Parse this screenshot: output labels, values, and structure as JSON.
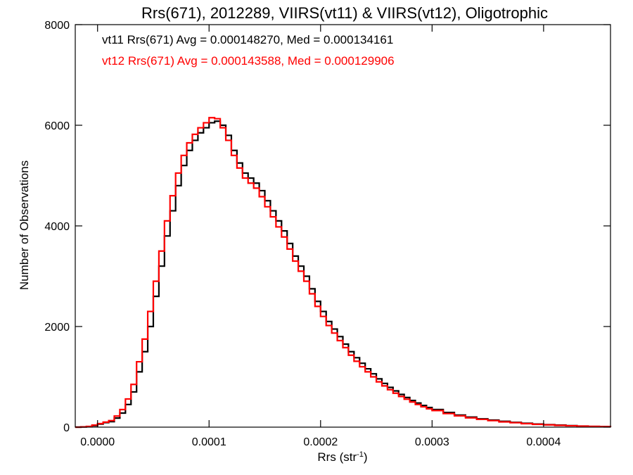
{
  "chart_data": {
    "type": "step-histogram",
    "title": "Rrs(671), 2012289, VIIRS(vt11) & VIIRS(vt12), Oligotrophic",
    "xlabel": "Rrs (str",
    "xlabel_sup": "-1",
    "xlabel_close": ")",
    "ylabel": "Number of Observations",
    "xlim": [
      -2e-05,
      0.00046
    ],
    "ylim": [
      0,
      8000
    ],
    "x_ticks": [
      0.0,
      0.0001,
      0.0002,
      0.0003,
      0.0004
    ],
    "x_tick_labels": [
      "0.0000",
      "0.0001",
      "0.0002",
      "0.0003",
      "0.0004"
    ],
    "y_ticks": [
      0,
      2000,
      4000,
      6000,
      8000
    ],
    "y_tick_labels": [
      "0",
      "2000",
      "4000",
      "6000",
      "8000"
    ],
    "annotations": [
      {
        "text": "vt11 Rrs(671) Avg = 0.000148270, Med = 0.000134161",
        "color": "#000000"
      },
      {
        "text": "vt12 Rrs(671) Avg = 0.000143588, Med = 0.000129906",
        "color": "#ff0000"
      }
    ],
    "series": [
      {
        "color": "#000000",
        "points": [
          [
            -2e-05,
            0
          ],
          [
            -1.5e-05,
            5
          ],
          [
            -1e-05,
            10
          ],
          [
            -5e-06,
            30
          ],
          [
            0.0,
            60
          ],
          [
            5e-06,
            90
          ],
          [
            1e-05,
            110
          ],
          [
            1.5e-05,
            180
          ],
          [
            2e-05,
            280
          ],
          [
            2.5e-05,
            450
          ],
          [
            3e-05,
            700
          ],
          [
            3.5e-05,
            1100
          ],
          [
            4e-05,
            1500
          ],
          [
            4.5e-05,
            2000
          ],
          [
            5e-05,
            2600
          ],
          [
            5.5e-05,
            3200
          ],
          [
            6e-05,
            3800
          ],
          [
            6.5e-05,
            4300
          ],
          [
            7e-05,
            4800
          ],
          [
            7.5e-05,
            5200
          ],
          [
            8e-05,
            5500
          ],
          [
            8.5e-05,
            5700
          ],
          [
            9e-05,
            5850
          ],
          [
            9.5e-05,
            5950
          ],
          [
            0.0001,
            6050
          ],
          [
            0.000105,
            6080
          ],
          [
            0.00011,
            6000
          ],
          [
            0.000115,
            5800
          ],
          [
            0.00012,
            5500
          ],
          [
            0.000125,
            5250
          ],
          [
            0.00013,
            5050
          ],
          [
            0.000135,
            4950
          ],
          [
            0.00014,
            4850
          ],
          [
            0.000145,
            4700
          ],
          [
            0.00015,
            4500
          ],
          [
            0.000155,
            4300
          ],
          [
            0.00016,
            4100
          ],
          [
            0.000165,
            3900
          ],
          [
            0.00017,
            3650
          ],
          [
            0.000175,
            3400
          ],
          [
            0.00018,
            3200
          ],
          [
            0.000185,
            3000
          ],
          [
            0.00019,
            2750
          ],
          [
            0.000195,
            2500
          ],
          [
            0.0002,
            2300
          ],
          [
            0.000205,
            2100
          ],
          [
            0.00021,
            1950
          ],
          [
            0.000215,
            1800
          ],
          [
            0.00022,
            1650
          ],
          [
            0.000225,
            1500
          ],
          [
            0.00023,
            1380
          ],
          [
            0.000235,
            1270
          ],
          [
            0.00024,
            1160
          ],
          [
            0.000245,
            1060
          ],
          [
            0.00025,
            960
          ],
          [
            0.000255,
            870
          ],
          [
            0.00026,
            790
          ],
          [
            0.000265,
            720
          ],
          [
            0.00027,
            650
          ],
          [
            0.000275,
            590
          ],
          [
            0.00028,
            530
          ],
          [
            0.000285,
            480
          ],
          [
            0.00029,
            430
          ],
          [
            0.000295,
            390
          ],
          [
            0.0003,
            350
          ],
          [
            0.00031,
            290
          ],
          [
            0.00032,
            240
          ],
          [
            0.00033,
            200
          ],
          [
            0.00034,
            165
          ],
          [
            0.00035,
            140
          ],
          [
            0.00036,
            115
          ],
          [
            0.00037,
            95
          ],
          [
            0.00038,
            78
          ],
          [
            0.00039,
            62
          ],
          [
            0.0004,
            50
          ],
          [
            0.00041,
            40
          ],
          [
            0.00042,
            30
          ],
          [
            0.00043,
            22
          ],
          [
            0.00044,
            15
          ],
          [
            0.00045,
            10
          ],
          [
            0.00046,
            5
          ]
        ]
      },
      {
        "color": "#ff0000",
        "points": [
          [
            -2e-05,
            0
          ],
          [
            -1.5e-05,
            5
          ],
          [
            -1e-05,
            15
          ],
          [
            -5e-06,
            40
          ],
          [
            0.0,
            70
          ],
          [
            5e-06,
            100
          ],
          [
            1e-05,
            130
          ],
          [
            1.5e-05,
            220
          ],
          [
            2e-05,
            350
          ],
          [
            2.5e-05,
            560
          ],
          [
            3e-05,
            850
          ],
          [
            3.5e-05,
            1300
          ],
          [
            4e-05,
            1750
          ],
          [
            4.5e-05,
            2300
          ],
          [
            5e-05,
            2900
          ],
          [
            5.5e-05,
            3500
          ],
          [
            6e-05,
            4100
          ],
          [
            6.5e-05,
            4600
          ],
          [
            7e-05,
            5050
          ],
          [
            7.5e-05,
            5400
          ],
          [
            8e-05,
            5650
          ],
          [
            8.5e-05,
            5820
          ],
          [
            9e-05,
            5950
          ],
          [
            9.5e-05,
            6050
          ],
          [
            0.0001,
            6150
          ],
          [
            0.000105,
            6130
          ],
          [
            0.00011,
            5950
          ],
          [
            0.000115,
            5700
          ],
          [
            0.00012,
            5400
          ],
          [
            0.000125,
            5150
          ],
          [
            0.00013,
            4950
          ],
          [
            0.000135,
            4850
          ],
          [
            0.00014,
            4750
          ],
          [
            0.000145,
            4580
          ],
          [
            0.00015,
            4380
          ],
          [
            0.000155,
            4180
          ],
          [
            0.00016,
            3980
          ],
          [
            0.000165,
            3780
          ],
          [
            0.00017,
            3540
          ],
          [
            0.000175,
            3300
          ],
          [
            0.00018,
            3100
          ],
          [
            0.000185,
            2900
          ],
          [
            0.00019,
            2650
          ],
          [
            0.000195,
            2400
          ],
          [
            0.0002,
            2200
          ],
          [
            0.000205,
            2020
          ],
          [
            0.00021,
            1870
          ],
          [
            0.000215,
            1720
          ],
          [
            0.00022,
            1580
          ],
          [
            0.000225,
            1430
          ],
          [
            0.00023,
            1310
          ],
          [
            0.000235,
            1200
          ],
          [
            0.00024,
            1100
          ],
          [
            0.000245,
            1000
          ],
          [
            0.00025,
            900
          ],
          [
            0.000255,
            820
          ],
          [
            0.00026,
            745
          ],
          [
            0.000265,
            675
          ],
          [
            0.00027,
            610
          ],
          [
            0.000275,
            555
          ],
          [
            0.00028,
            500
          ],
          [
            0.000285,
            450
          ],
          [
            0.00029,
            405
          ],
          [
            0.000295,
            365
          ],
          [
            0.0003,
            330
          ],
          [
            0.00031,
            270
          ],
          [
            0.00032,
            225
          ],
          [
            0.00033,
            185
          ],
          [
            0.00034,
            155
          ],
          [
            0.00035,
            130
          ],
          [
            0.00036,
            105
          ],
          [
            0.00037,
            88
          ],
          [
            0.00038,
            70
          ],
          [
            0.00039,
            56
          ],
          [
            0.0004,
            45
          ],
          [
            0.00041,
            35
          ],
          [
            0.00042,
            27
          ],
          [
            0.00043,
            20
          ],
          [
            0.00044,
            14
          ],
          [
            0.00045,
            9
          ],
          [
            0.00046,
            4
          ]
        ]
      }
    ]
  }
}
